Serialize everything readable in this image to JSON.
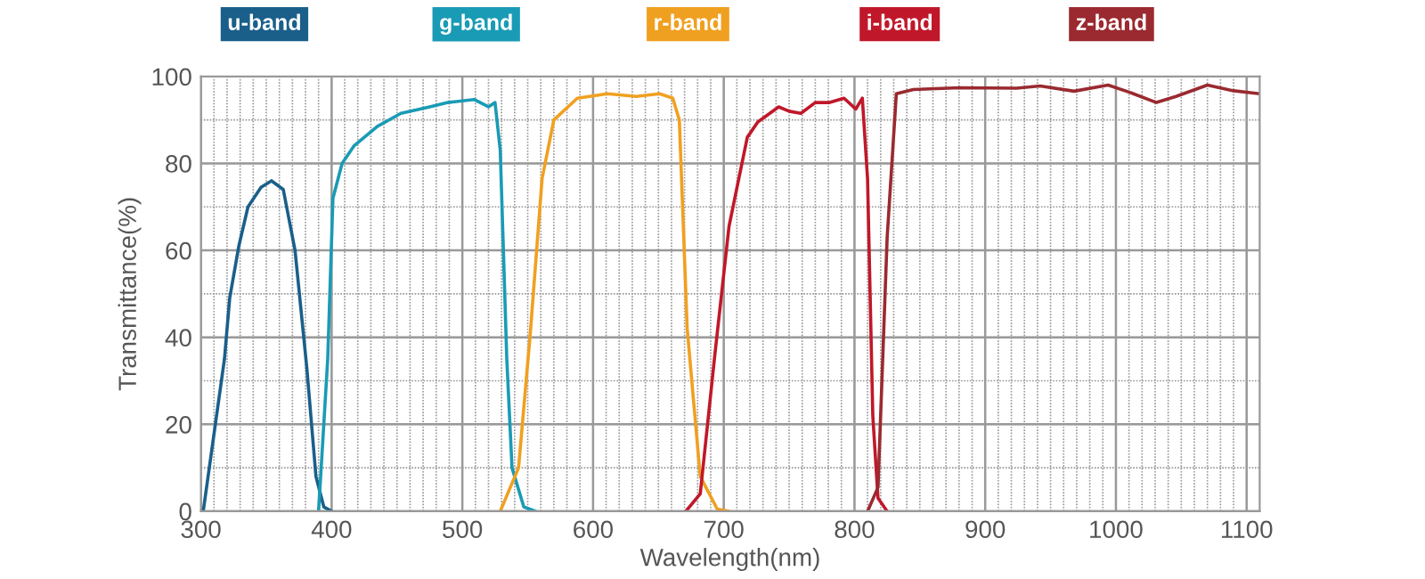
{
  "chart_data": {
    "type": "line",
    "xlabel": "Wavelength(nm)",
    "ylabel": "Transmittance(%)",
    "xlim": [
      300,
      1110
    ],
    "ylim": [
      0,
      100
    ],
    "xticks": [
      300,
      400,
      500,
      600,
      700,
      800,
      900,
      1000,
      1100
    ],
    "yticks": [
      0,
      20,
      40,
      60,
      80,
      100
    ],
    "grid": true,
    "legend": "top",
    "marker": "none",
    "line_style": "solid",
    "series": [
      {
        "name": "u-band",
        "color": "#1a5f8a",
        "x": [
          300,
          302,
          318,
          322,
          329,
          336,
          346,
          354,
          363,
          372,
          381,
          388,
          394,
          400
        ],
        "values": [
          0,
          0.5,
          35,
          49,
          61,
          70,
          74.5,
          76,
          74,
          60,
          33,
          8,
          1,
          0
        ]
      },
      {
        "name": "g-band",
        "color": "#1a9bb5",
        "x": [
          390,
          397,
          401,
          408,
          417,
          435,
          453,
          475,
          489,
          509,
          520,
          525,
          529,
          534,
          538,
          547,
          556
        ],
        "values": [
          0,
          35,
          72,
          80,
          84,
          88.5,
          91.5,
          93,
          94,
          94.7,
          93,
          94,
          83,
          35,
          10,
          1,
          0
        ]
      },
      {
        "name": "r-band",
        "color": "#f0a020",
        "x": [
          529,
          543,
          552,
          561,
          570,
          588,
          611,
          633,
          651,
          661,
          666,
          672,
          682,
          695,
          704
        ],
        "values": [
          0,
          10,
          41,
          76.5,
          90,
          95,
          96,
          95.4,
          96,
          95,
          90,
          42,
          8,
          0.5,
          0
        ]
      },
      {
        "name": "i-band",
        "color": "#c0182a",
        "x": [
          671,
          682,
          693,
          704,
          718,
          726,
          742,
          750,
          759,
          770,
          781,
          792,
          801,
          806,
          810,
          814,
          818,
          825
        ],
        "values": [
          0,
          4,
          35.5,
          65.5,
          86,
          89.5,
          93,
          92,
          91.5,
          94,
          94,
          95,
          92.5,
          95,
          76.5,
          22,
          3,
          0
        ]
      },
      {
        "name": "z-band",
        "color": "#9a2a30",
        "x": [
          810,
          818,
          825,
          832,
          845,
          880,
          924,
          942,
          968,
          994,
          1011,
          1031,
          1046,
          1070,
          1090,
          1110
        ],
        "values": [
          0,
          5.5,
          63,
          96,
          97,
          97.4,
          97.3,
          97.8,
          96.6,
          98,
          96.3,
          94,
          95.4,
          98,
          96.7,
          96
        ]
      }
    ]
  }
}
